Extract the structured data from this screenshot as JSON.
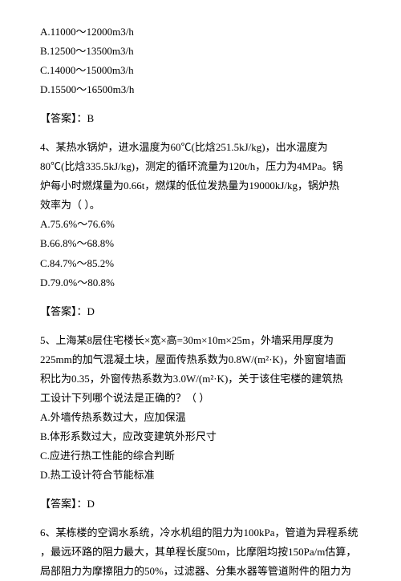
{
  "q3_options": {
    "a": "A.11000～12000m3/h",
    "b": "B.12500～13500m3/h",
    "c": "C.14000～15000m3/h",
    "d": "D.15500～16500m3/h"
  },
  "q3_answer": "【答案】：B",
  "q4": {
    "stem1": "4、某热水锅炉，进水温度为60℃(比焓251.5kJ/kg)，出水温度为",
    "stem2": "80℃(比焓335.5kJ/kg)，测定的循环流量为120t/h，压力为4MPa。锅",
    "stem3": "炉每小时燃煤量为0.66t，燃煤的低位发热量为19000kJ/kg，锅炉热",
    "stem4": "效率为（ ）。",
    "a": "A.75.6%～76.6%",
    "b": "B.66.8%～68.8%",
    "c": "C.84.7%～85.2%",
    "d": "D.79.0%～80.8%"
  },
  "q4_answer": "【答案】：D",
  "q5": {
    "stem1": "5、上海某8层住宅楼长×宽×高=30m×10m×25m，外墙采用厚度为",
    "stem2": "225mm的加气混凝土块，屋面传热系数为0.8W/(m²·K)，外窗窗墙面",
    "stem3": "积比为0.35，外窗传热系数为3.0W/(m²·K)，关于该住宅楼的建筑热",
    "stem4": "工设计下列哪个说法是正确的？（ ）",
    "a": "A.外墙传热系数过大，应加保温",
    "b": "B.体形系数过大，应改变建筑外形尺寸",
    "c": "C.应进行热工性能的综合判断",
    "d": "D.热工设计符合节能标准"
  },
  "q5_answer": "【答案】：D",
  "q6": {
    "stem1": "6、某栋楼的空调水系统，冷水机组的阻力为100kPa，管道为异程系统",
    "stem2": "，最远环路的阻力最大，其单程长度50m，比摩阻均按150Pa/m估算，",
    "stem3": "局部阻力为摩擦阻力的50%，过滤器、分集水器等管道附件的阻力为"
  }
}
